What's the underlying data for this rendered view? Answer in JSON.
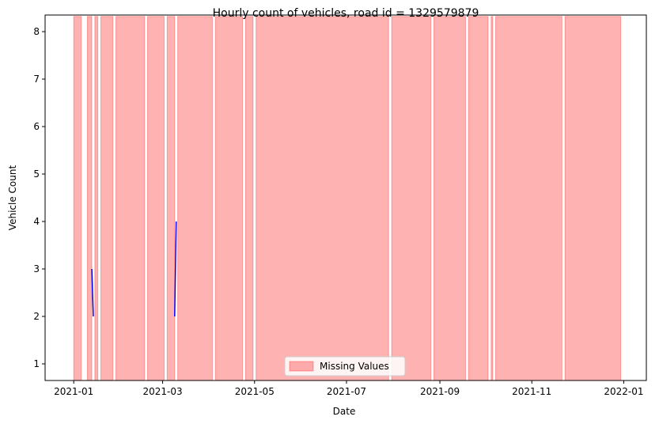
{
  "chart_data": {
    "type": "line",
    "title": "Hourly count of vehicles, road id = 1329579879",
    "xlabel": "Date",
    "ylabel": "Vehicle Count",
    "xlim": [
      "2020-12-13",
      "2022-01-16"
    ],
    "ylim": [
      0.65,
      8.35
    ],
    "x_ticks": [
      "2021-01",
      "2021-03",
      "2021-05",
      "2021-07",
      "2021-09",
      "2021-11",
      "2022-01"
    ],
    "x_tick_dates": [
      "2021-01-01",
      "2021-03-01",
      "2021-05-01",
      "2021-07-01",
      "2021-09-01",
      "2021-11-01",
      "2022-01-01"
    ],
    "y_ticks": [
      1,
      2,
      3,
      4,
      5,
      6,
      7,
      8
    ],
    "grid": false,
    "series": [
      {
        "color": "#0000ff",
        "segments": [
          [
            [
              "2021-01-13T00:00",
              3
            ],
            [
              "2021-01-14T00:00",
              2
            ]
          ],
          [
            [
              "2021-03-09T00:00",
              2
            ],
            [
              "2021-03-10T00:00",
              4
            ]
          ]
        ]
      }
    ],
    "shaded_regions": {
      "name": "Missing Values",
      "color": "#ff0000",
      "alpha": 0.3,
      "ranges": [
        [
          "2021-01-01",
          "2021-01-06"
        ],
        [
          "2021-01-10",
          "2021-01-13"
        ],
        [
          "2021-01-15",
          "2021-01-17"
        ],
        [
          "2021-01-19",
          "2021-01-27"
        ],
        [
          "2021-01-29",
          "2021-02-17"
        ],
        [
          "2021-02-19",
          "2021-03-02"
        ],
        [
          "2021-03-04",
          "2021-03-09"
        ],
        [
          "2021-03-11",
          "2021-04-03"
        ],
        [
          "2021-04-05",
          "2021-04-23"
        ],
        [
          "2021-04-25",
          "2021-04-30"
        ],
        [
          "2021-05-02",
          "2021-07-29"
        ],
        [
          "2021-07-31",
          "2021-08-26"
        ],
        [
          "2021-08-28",
          "2021-09-18"
        ],
        [
          "2021-09-20",
          "2021-10-03"
        ],
        [
          "2021-10-05",
          "2021-10-06"
        ],
        [
          "2021-10-08",
          "2021-11-21"
        ],
        [
          "2021-11-23",
          "2021-12-30"
        ]
      ]
    },
    "legend": {
      "placement": "lower center",
      "entries": [
        "Missing Values"
      ]
    }
  }
}
